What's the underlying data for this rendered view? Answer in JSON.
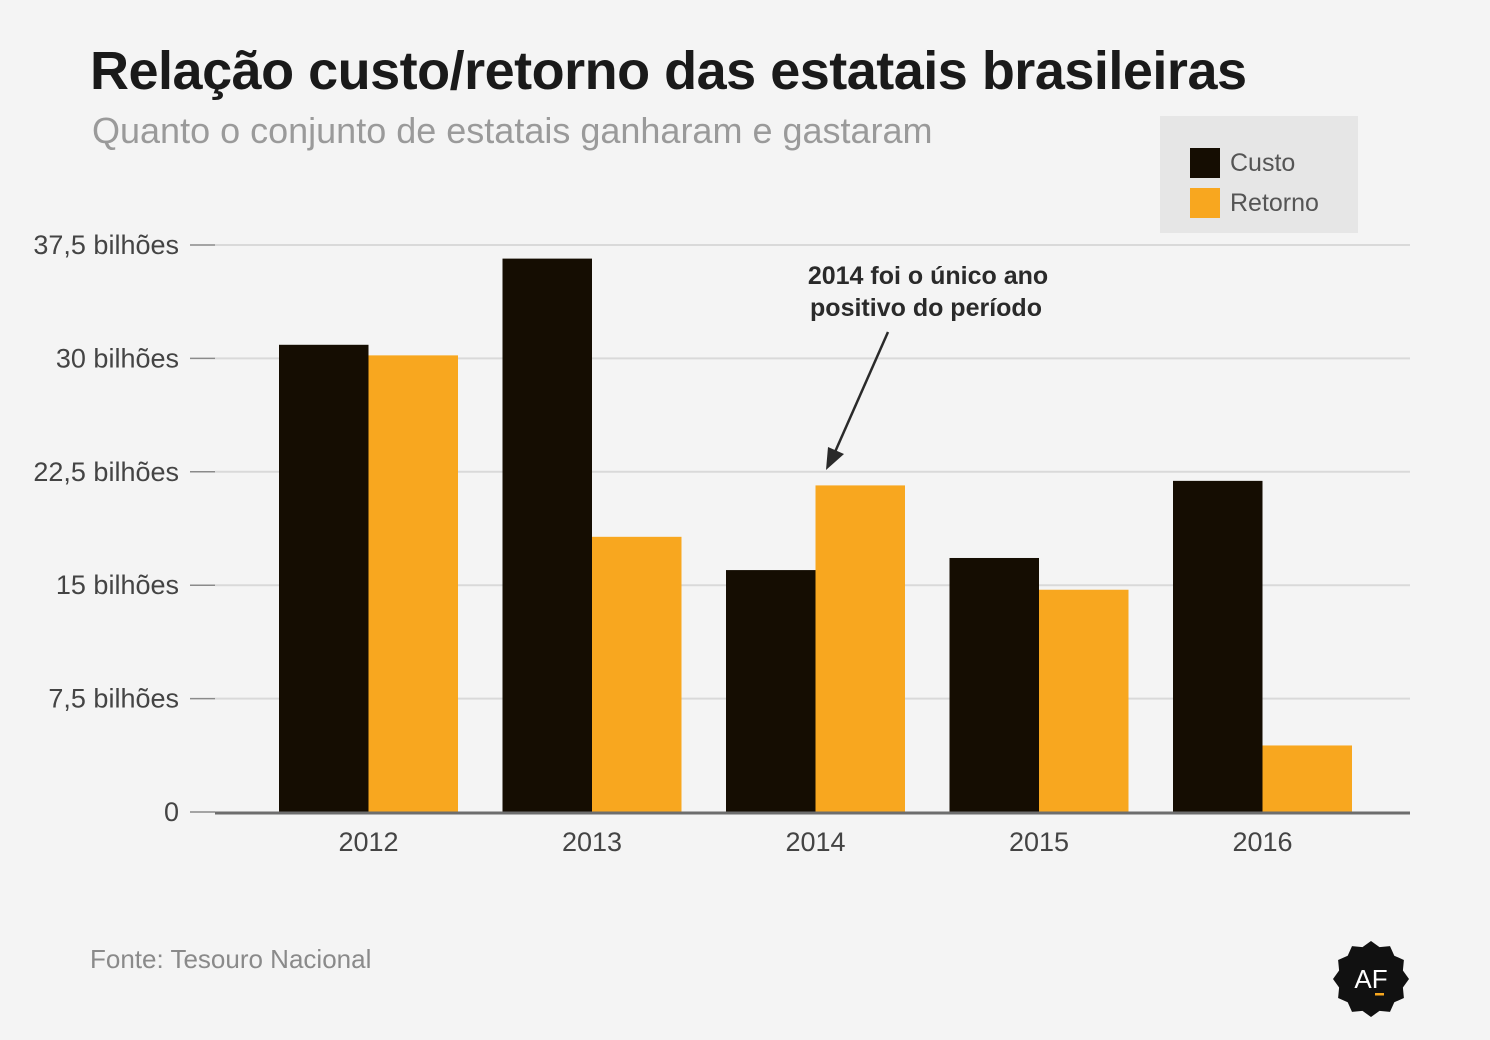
{
  "title": "Relação custo/retorno das estatais brasileiras",
  "subtitle": "Quanto o conjunto de estatais ganharam e gastaram",
  "source": "Fonte: Tesouro Nacional",
  "logo_text": "AF",
  "annotation": {
    "line1": "2014 foi o único ano",
    "line2": "positivo do período"
  },
  "colors": {
    "custo": "#150d02",
    "retorno": "#f8a71f",
    "grid": "#d9d9d9",
    "axis": "#6d6d6d",
    "background": "#f4f4f4"
  },
  "chart_data": {
    "type": "bar",
    "categories": [
      "2012",
      "2013",
      "2014",
      "2015",
      "2016"
    ],
    "series": [
      {
        "name": "Custo",
        "values": [
          30.9,
          36.6,
          16.0,
          16.8,
          21.9
        ]
      },
      {
        "name": "Retorno",
        "values": [
          30.2,
          18.2,
          21.6,
          14.7,
          4.4
        ]
      }
    ],
    "yticks": [
      {
        "value": 0,
        "label": "0"
      },
      {
        "value": 7.5,
        "label": "7,5 bilhões"
      },
      {
        "value": 15,
        "label": "15 bilhões"
      },
      {
        "value": 22.5,
        "label": "22,5 bilhões"
      },
      {
        "value": 30,
        "label": "30 bilhões"
      },
      {
        "value": 37.5,
        "label": "37,5 bilhões"
      }
    ],
    "ylim": [
      0,
      37.5
    ],
    "grid": true,
    "legend_position": "top-right"
  }
}
